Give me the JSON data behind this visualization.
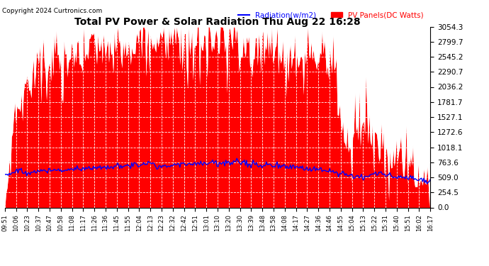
{
  "title": "Total PV Power & Solar Radiation Thu Aug 22 16:28",
  "copyright": "Copyright 2024 Curtronics.com",
  "legend_radiation": "Radiation(w/m2)",
  "legend_pv": "PV Panels(DC Watts)",
  "yticks": [
    0.0,
    254.5,
    509.0,
    763.6,
    1018.1,
    1272.6,
    1527.1,
    1781.7,
    2036.2,
    2290.7,
    2545.2,
    2799.7,
    3054.3
  ],
  "ymax": 3054.3,
  "ymin": 0.0,
  "background_color": "#ffffff",
  "pv_color": "#ff0000",
  "radiation_color": "#0000ff",
  "grid_color": "#aaaaaa",
  "xtick_labels": [
    "09:51",
    "10:06",
    "10:23",
    "10:37",
    "10:47",
    "10:58",
    "11:08",
    "11:17",
    "11:26",
    "11:36",
    "11:45",
    "11:55",
    "12:04",
    "12:13",
    "12:23",
    "12:32",
    "12:42",
    "12:51",
    "13:01",
    "13:10",
    "13:20",
    "13:30",
    "13:39",
    "13:48",
    "13:58",
    "14:08",
    "14:17",
    "14:27",
    "14:36",
    "14:46",
    "14:55",
    "15:04",
    "15:13",
    "15:22",
    "15:31",
    "15:40",
    "15:51",
    "16:02",
    "16:17"
  ],
  "n_points": 390
}
